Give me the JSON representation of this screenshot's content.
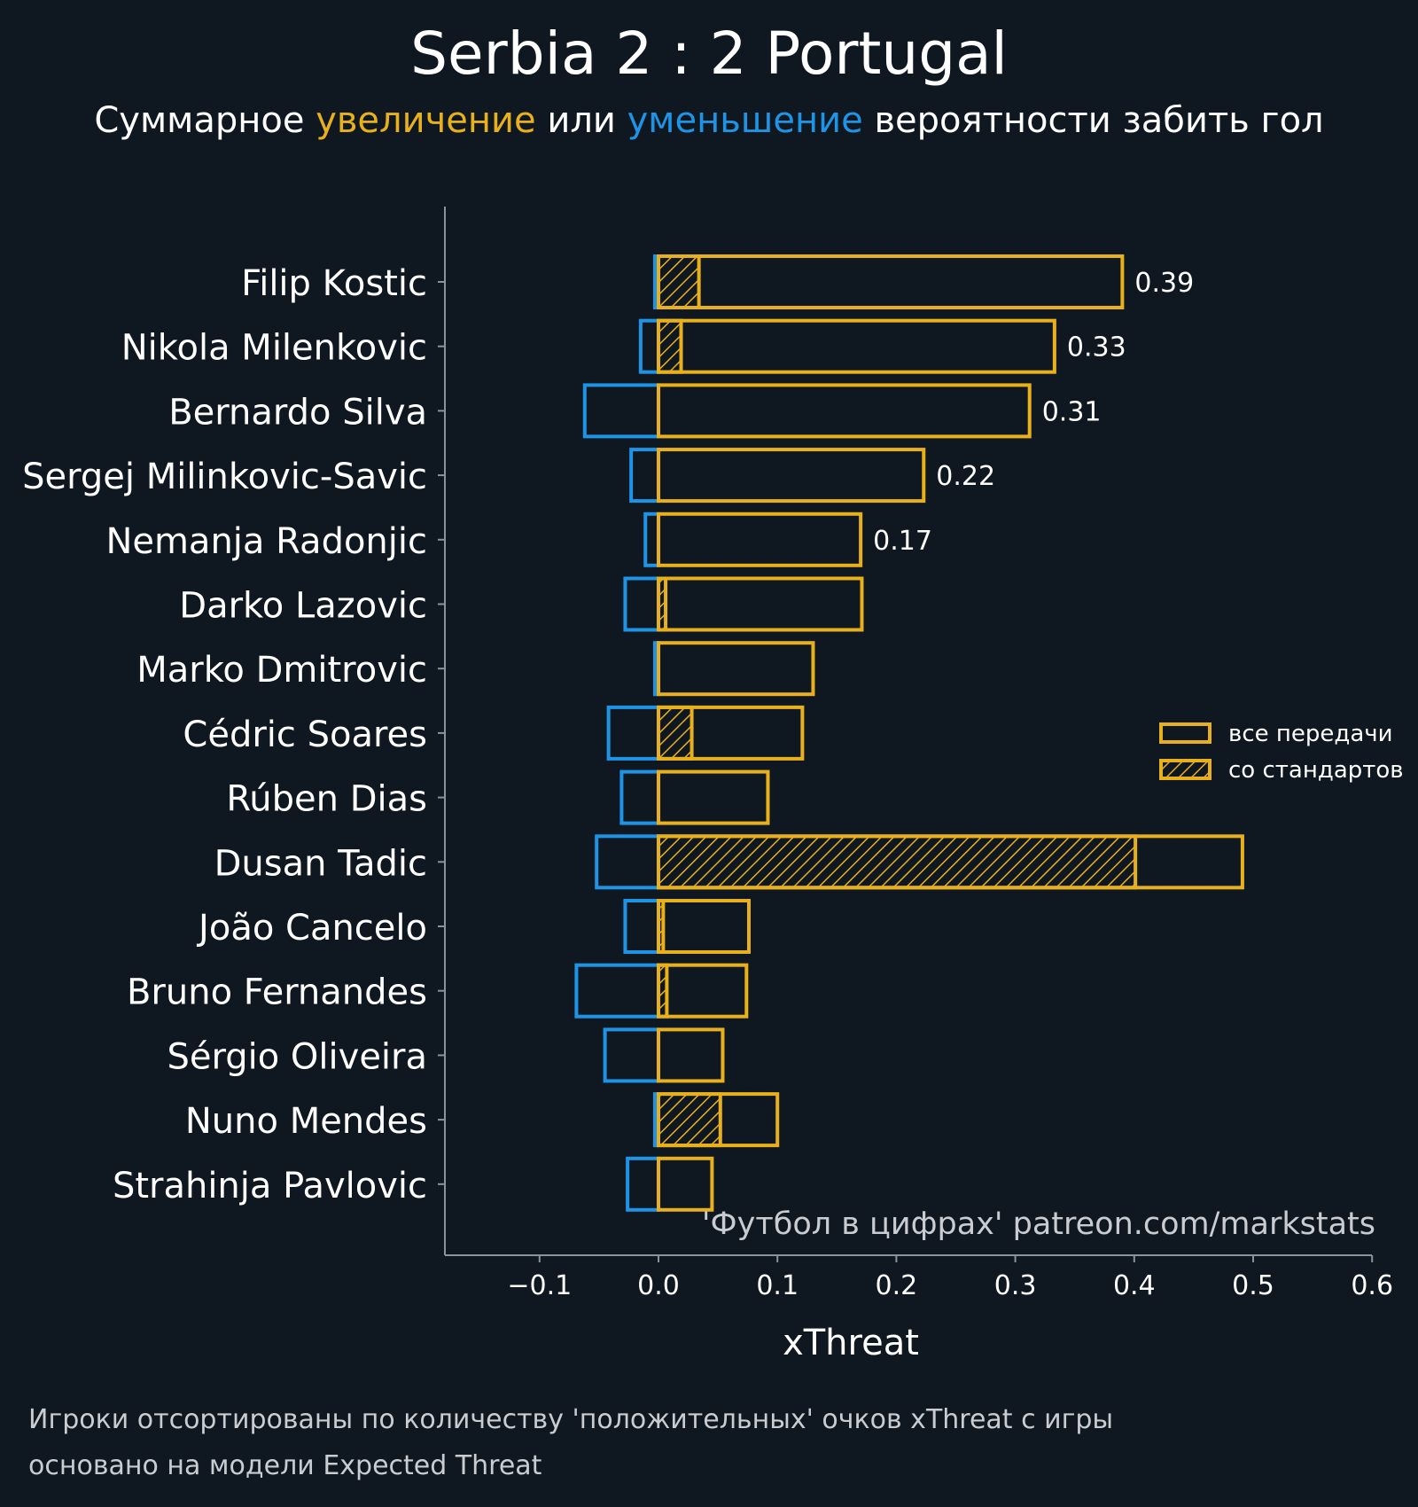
{
  "title": "Serbia 2 : 2 Portugal",
  "subtitle": {
    "part1": "Суммарное ",
    "increase": "увеличение",
    "part2": " или ",
    "decrease": "уменьшение",
    "part3": " вероятности забить гол"
  },
  "colors": {
    "background": "#0f1820",
    "increase": "#e8b11c",
    "decrease": "#1e94e6",
    "text": "#ffffff",
    "axis": "#8a939b"
  },
  "watermark": "'Футбол в цифрах' patreon.com/markstats",
  "footer": {
    "line1": "Игроки отсортированы по количеству 'положительных' очков xThreat с игры",
    "line2": "основано на модели Expected Threat"
  },
  "chart_data": {
    "type": "bar",
    "orientation": "horizontal",
    "xlabel": "xThreat",
    "xlim": [
      -0.18,
      0.6
    ],
    "xticks": [
      -0.1,
      0.0,
      0.1,
      0.2,
      0.3,
      0.4,
      0.5,
      0.6
    ],
    "xtick_labels": [
      "−0.1",
      "0.0",
      "0.1",
      "0.2",
      "0.3",
      "0.4",
      "0.5",
      "0.6"
    ],
    "categories": [
      "Filip Kostic",
      "Nikola Milenkovic",
      "Bernardo Silva",
      "Sergej Milinkovic-Savic",
      "Nemanja Radonjic",
      "Darko Lazovic",
      "Marko Dmitrovic",
      "Cédric Soares",
      "Rúben Dias",
      "Dusan Tadic",
      "João Cancelo",
      "Bruno Fernandes",
      "Sérgio Oliveira",
      "Nuno Mendes",
      "Strahinja Pavlovic"
    ],
    "series": [
      {
        "name": "все передачи",
        "positive": [
          0.39,
          0.333,
          0.312,
          0.223,
          0.17,
          0.171,
          0.13,
          0.121,
          0.092,
          0.491,
          0.076,
          0.074,
          0.054,
          0.1,
          0.045
        ],
        "negative": [
          -0.003,
          -0.015,
          -0.062,
          -0.023,
          -0.011,
          -0.028,
          -0.003,
          -0.042,
          -0.031,
          -0.052,
          -0.028,
          -0.069,
          -0.045,
          -0.003,
          -0.026
        ]
      },
      {
        "name": "со стандартов",
        "positive": [
          0.034,
          0.019,
          0,
          0,
          0,
          0.006,
          0,
          0.028,
          0,
          0.401,
          0.004,
          0.007,
          0,
          0.052,
          0
        ]
      }
    ],
    "data_labels": [
      "0.39",
      "0.33",
      "0.31",
      "0.22",
      "0.17"
    ],
    "legend": {
      "position": "right",
      "entries": [
        "все передачи",
        "со стандартов"
      ]
    },
    "grid": false
  }
}
